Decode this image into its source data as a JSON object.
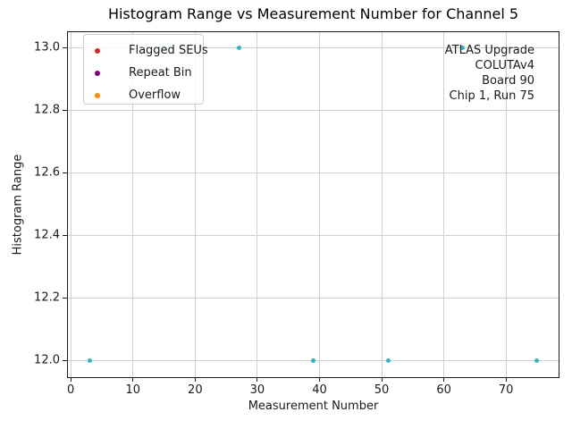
{
  "figure": {
    "title": "Histogram Range vs Measurement Number for Channel 5",
    "xlabel": "Measurement Number",
    "ylabel": "Histogram Range"
  },
  "legend": {
    "items": [
      {
        "label": "Flagged SEUs",
        "color": "#d62728"
      },
      {
        "label": "Repeat Bin",
        "color": "#800080"
      },
      {
        "label": "Overflow",
        "color": "#ff8c00"
      }
    ]
  },
  "annotation": {
    "lines": [
      "ATLAS Upgrade",
      "COLUTAv4",
      "Board 90",
      "Chip 1, Run 75"
    ]
  },
  "chart_data": {
    "type": "scatter",
    "title": "Histogram Range vs Measurement Number for Channel 5",
    "xlabel": "Measurement Number",
    "ylabel": "Histogram Range",
    "series": [
      {
        "name": "Histogram Range",
        "color": "#2bb8c6",
        "x": [
          3,
          15,
          27,
          39,
          51,
          63,
          75
        ],
        "y": [
          12.0,
          13.0,
          13.0,
          12.0,
          12.0,
          13.0,
          12.0
        ]
      }
    ],
    "x_ticks": [
      0,
      10,
      20,
      30,
      40,
      50,
      60,
      70
    ],
    "x_tick_labels": [
      "0",
      "10",
      "20",
      "30",
      "40",
      "50",
      "60",
      "70"
    ],
    "y_ticks": [
      12.0,
      12.2,
      12.4,
      12.6,
      12.8,
      13.0
    ],
    "y_tick_labels": [
      "12.0",
      "12.2",
      "12.4",
      "12.6",
      "12.8",
      "13.0"
    ],
    "xlim": [
      -0.6,
      78.6
    ],
    "ylim": [
      11.94,
      13.06
    ],
    "grid": true,
    "legend_position": "upper left",
    "annotation_position": "upper right"
  },
  "colors": {
    "marker": "#2bb8c6",
    "grid": "#cfcfcf",
    "spine": "#1a1a1a",
    "legend_border": "#cccccc"
  }
}
